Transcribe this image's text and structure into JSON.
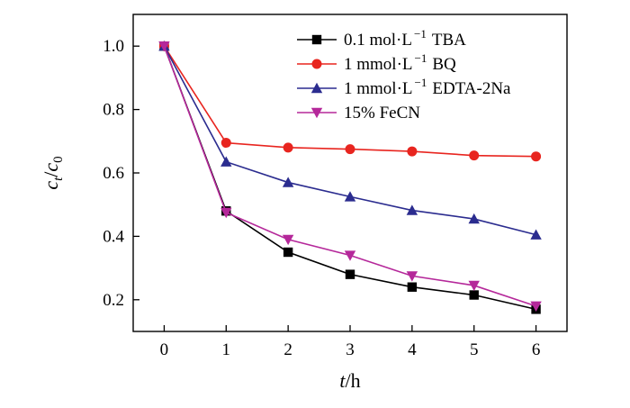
{
  "chart_data": {
    "type": "line",
    "title": "",
    "xlabel": "t/h",
    "ylabel": "c_t/c_0",
    "xlabel_parts": {
      "var": "t",
      "unit": "/h"
    },
    "ylabel_parts": {
      "num": "c",
      "num_sub": "t",
      "sep": "/",
      "den": "c",
      "den_sub": "0"
    },
    "x": [
      0,
      1,
      2,
      3,
      4,
      5,
      6
    ],
    "xlim": [
      -0.5,
      6.5
    ],
    "ylim": [
      0.1,
      1.1
    ],
    "xticks": [
      0,
      1,
      2,
      3,
      4,
      5,
      6
    ],
    "yticks": [
      0.2,
      0.4,
      0.6,
      0.8,
      1.0
    ],
    "xtick_labels": [
      "0",
      "1",
      "2",
      "3",
      "4",
      "5",
      "6"
    ],
    "ytick_labels": [
      "0.2",
      "0.4",
      "0.6",
      "0.8",
      "1.0"
    ],
    "grid": false,
    "legend_position": "top-right",
    "series": [
      {
        "name": "0.1 mol·L⁻¹ TBA",
        "label_main": "0.1 mol·L",
        "label_sup": "−1",
        "label_tail": "TBA",
        "marker": "square",
        "color": "#000000",
        "values": [
          1.0,
          0.48,
          0.35,
          0.28,
          0.24,
          0.215,
          0.17
        ]
      },
      {
        "name": "1 mmol·L⁻¹ BQ",
        "label_main": "1 mmol·L",
        "label_sup": "−1",
        "label_tail": "BQ",
        "marker": "circle",
        "color": "#e8251f",
        "values": [
          1.0,
          0.695,
          0.68,
          0.675,
          0.668,
          0.655,
          0.652
        ]
      },
      {
        "name": "1 mmol·L⁻¹ EDTA-2Na",
        "label_main": "1 mmol·L",
        "label_sup": "−1",
        "label_tail": "EDTA-2Na",
        "marker": "triangle-up",
        "color": "#2b2c8f",
        "values": [
          1.0,
          0.635,
          0.57,
          0.525,
          0.482,
          0.455,
          0.405
        ]
      },
      {
        "name": "15% FeCN",
        "label_main": "15% FeCN",
        "label_sup": "",
        "label_tail": "",
        "marker": "triangle-down",
        "color": "#b5289a",
        "values": [
          1.0,
          0.475,
          0.39,
          0.34,
          0.275,
          0.245,
          0.18
        ]
      }
    ]
  }
}
